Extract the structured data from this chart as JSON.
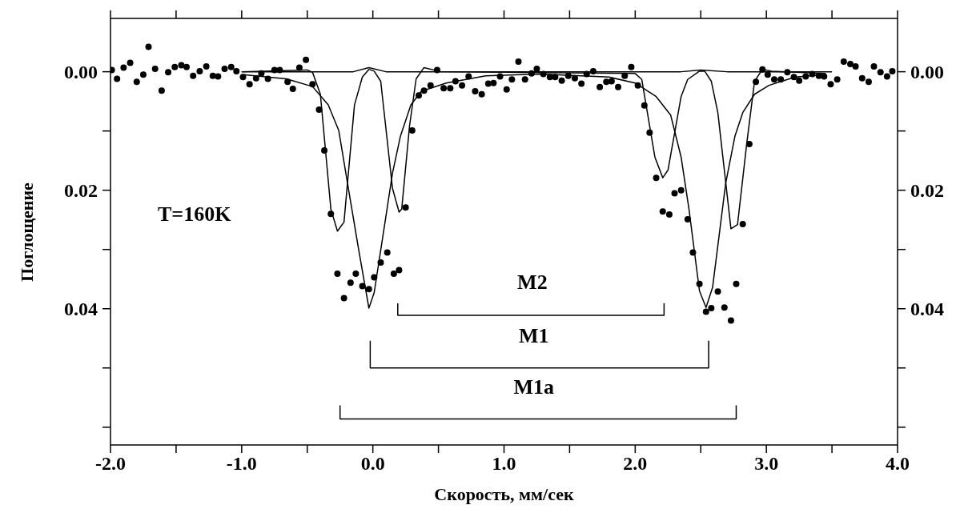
{
  "chart_data": {
    "type": "scatter",
    "xlabel": "Скорость, мм/сек",
    "ylabel": "Поглощение",
    "xlim": [
      -2.0,
      4.0
    ],
    "xticks": [
      {
        "value": -2,
        "label": "-2.0"
      },
      {
        "value": -1.5,
        "label": null
      },
      {
        "value": -1,
        "label": "-1.0"
      },
      {
        "value": -0.5,
        "label": null
      },
      {
        "value": 0,
        "label": "0.0"
      },
      {
        "value": 0.5,
        "label": null
      },
      {
        "value": 1,
        "label": "1.0"
      },
      {
        "value": 1.5,
        "label": null
      },
      {
        "value": 2,
        "label": "2.0"
      },
      {
        "value": 2.5,
        "label": null
      },
      {
        "value": 3,
        "label": "3.0"
      },
      {
        "value": 3.5,
        "label": null
      },
      {
        "value": 4,
        "label": "4.0"
      }
    ],
    "ylim": [
      0.063,
      -0.009
    ],
    "yticks": [
      {
        "value": 0,
        "label": "0.00"
      },
      {
        "value": 0.01,
        "label": null
      },
      {
        "value": 0.02,
        "label": "0.02"
      },
      {
        "value": 0.03,
        "label": null
      },
      {
        "value": 0.04,
        "label": "0.04"
      },
      {
        "value": 0.05,
        "label": null
      },
      {
        "value": 0.06,
        "label": null
      }
    ],
    "y2lim": [
      0.063,
      -0.009
    ],
    "y2ticks": [
      {
        "value": 0,
        "label": "0.00"
      },
      {
        "value": 0.01,
        "label": null
      },
      {
        "value": 0.02,
        "label": "0.02"
      },
      {
        "value": 0.03,
        "label": null
      },
      {
        "value": 0.04,
        "label": "0.04"
      },
      {
        "value": 0.05,
        "label": null
      },
      {
        "value": 0.06,
        "label": null
      }
    ],
    "series": [
      {
        "color": "#000000",
        "marker": "circle",
        "x": [
          -1.99,
          -1.95,
          -1.9,
          -1.85,
          -1.8,
          -1.75,
          -1.71,
          -1.66,
          -1.61,
          -1.56,
          -1.51,
          -1.46,
          -1.42,
          -1.37,
          -1.32,
          -1.27,
          -1.22,
          -1.18,
          -1.13,
          -1.08,
          -1.04,
          -0.99,
          -0.94,
          -0.89,
          -0.85,
          -0.8,
          -0.75,
          -0.71,
          -0.65,
          -0.61,
          -0.56,
          -0.51,
          -0.46,
          -0.41,
          -0.37,
          -0.32,
          -0.27,
          -0.22,
          -0.17,
          -0.13,
          -0.08,
          -0.03,
          0.01,
          0.06,
          0.11,
          0.16,
          0.2,
          0.25,
          0.3,
          0.35,
          0.39,
          0.44,
          0.49,
          0.54,
          0.59,
          0.63,
          0.68,
          0.73,
          0.78,
          0.83,
          0.88,
          0.92,
          0.97,
          1.02,
          1.06,
          1.11,
          1.16,
          1.21,
          1.25,
          1.3,
          1.35,
          1.39,
          1.44,
          1.49,
          1.54,
          1.59,
          1.63,
          1.68,
          1.73,
          1.78,
          1.82,
          1.87,
          1.92,
          1.97,
          2.02,
          2.07,
          2.11,
          2.16,
          2.21,
          2.26,
          2.3,
          2.35,
          2.4,
          2.44,
          2.49,
          2.54,
          2.58,
          2.63,
          2.68,
          2.73,
          2.77,
          2.82,
          2.87,
          2.92,
          2.97,
          3.01,
          3.06,
          3.11,
          3.16,
          3.21,
          3.25,
          3.3,
          3.35,
          3.4,
          3.44,
          3.49,
          3.54,
          3.59,
          3.64,
          3.68,
          3.73,
          3.78,
          3.82,
          3.87,
          3.92,
          3.96
        ],
        "values": [
          -0.0003,
          0.0012,
          -0.0007,
          -0.0015,
          0.0017,
          0.0005,
          -0.0042,
          -0.0005,
          0.0032,
          0.0001,
          -0.0008,
          -0.0011,
          -0.0008,
          0.0007,
          -0.0001,
          -0.0009,
          0.0007,
          0.0008,
          -0.0005,
          -0.0008,
          -0.0001,
          0.0009,
          0.0021,
          0.0011,
          0.0003,
          0.0012,
          -0.0003,
          -0.0003,
          0.0017,
          0.0029,
          -0.0007,
          -0.002,
          0.0021,
          0.0064,
          0.0133,
          0.024,
          0.0341,
          0.0382,
          0.0356,
          0.0341,
          0.0362,
          0.0367,
          0.0347,
          0.0322,
          0.0305,
          0.0341,
          0.0335,
          0.0229,
          0.0099,
          0.004,
          0.0032,
          0.0023,
          -0.0003,
          0.0028,
          0.0028,
          0.0016,
          0.0023,
          0.0008,
          0.0033,
          0.0038,
          0.002,
          0.0019,
          0.0008,
          0.003,
          0.0013,
          -0.0017,
          0.0013,
          0.0003,
          -0.0005,
          0.0004,
          0.0009,
          0.0009,
          0.0015,
          0.0007,
          0.0011,
          0.002,
          0.0004,
          -0.0001,
          0.0026,
          0.0017,
          0.0016,
          0.0026,
          0.0007,
          -0.0008,
          0.0023,
          0.0057,
          0.0103,
          0.0179,
          0.0236,
          0.0241,
          0.0205,
          0.02,
          0.0249,
          0.0305,
          0.0358,
          0.0405,
          0.0399,
          0.0371,
          0.0398,
          0.042,
          0.0358,
          0.0257,
          0.0122,
          0.0017,
          -0.0004,
          0.0005,
          0.0013,
          0.0013,
          0.0001,
          0.0009,
          0.0015,
          0.0008,
          0.0004,
          0.0007,
          0.0008,
          0.0021,
          0.0013,
          -0.0017,
          -0.0013,
          -0.0009,
          0.0011,
          0.0017,
          -0.0009,
          0.0001,
          0.0008,
          -0.0001
        ]
      },
      {
        "type": "line",
        "color": "#000000",
        "marker": "none",
        "x": [
          -1.0,
          -0.4,
          -0.15,
          -0.03,
          0.1,
          0.4,
          1.0,
          2.0,
          2.35,
          2.5,
          2.7,
          2.9,
          3.5
        ],
        "values": [
          0,
          0,
          0,
          -0.0007,
          0,
          0,
          0,
          0,
          0,
          -0.0003,
          0,
          0,
          0
        ]
      },
      {
        "type": "line",
        "color": "#000000",
        "marker": "none",
        "x": [
          -1.0,
          -0.5,
          -0.46,
          -0.4,
          -0.32,
          -0.27,
          -0.22,
          -0.14,
          -0.08,
          -0.03,
          0.01,
          0.06,
          0.15,
          0.2,
          0.22,
          0.28,
          0.33,
          0.39,
          0.52,
          2.0,
          2.05,
          2.15,
          2.21,
          2.25,
          2.35,
          2.4,
          2.49,
          2.53,
          2.58,
          2.63,
          2.73,
          2.78,
          2.85,
          2.91,
          2.97,
          3.04,
          3.45
        ],
        "values": [
          0,
          -0.0003,
          0.0001,
          0.0038,
          0.0232,
          0.0269,
          0.0254,
          0.0056,
          0.0009,
          -0.0004,
          -0.0001,
          0.0016,
          0.0197,
          0.0237,
          0.0232,
          0.0091,
          0.0012,
          -0.0007,
          0,
          0.0003,
          0.0013,
          0.0144,
          0.0179,
          0.0166,
          0.0042,
          0.0013,
          -0.0001,
          -0.0001,
          0.0016,
          0.0069,
          0.0265,
          0.0258,
          0.0122,
          0.0016,
          -0.0004,
          -0.0001,
          0.0003
        ]
      },
      {
        "type": "line",
        "color": "#000000",
        "marker": "none",
        "x": [
          -0.99,
          -0.66,
          -0.46,
          -0.34,
          -0.26,
          -0.2,
          -0.11,
          -0.03,
          0.01,
          0.09,
          0.15,
          0.21,
          0.29,
          0.37,
          0.56,
          0.86,
          1.27,
          1.8,
          2.0,
          2.16,
          2.27,
          2.35,
          2.41,
          2.49,
          2.54,
          2.59,
          2.69,
          2.76,
          2.82,
          2.91,
          3.02,
          3.22,
          3.45
        ],
        "values": [
          0.0005,
          0.0012,
          0.0025,
          0.0056,
          0.0099,
          0.0179,
          0.0298,
          0.0399,
          0.0373,
          0.0258,
          0.0171,
          0.0109,
          0.0056,
          0.0033,
          0.0019,
          0.0007,
          0.0004,
          0.0009,
          0.0019,
          0.0042,
          0.0073,
          0.0144,
          0.0232,
          0.037,
          0.0398,
          0.0364,
          0.0188,
          0.0109,
          0.0069,
          0.0038,
          0.0023,
          0.0009,
          0.0005
        ]
      },
      {
        "type": "line",
        "color": "#000000",
        "marker": "none",
        "x": [
          0.19,
          0.19,
          2.22,
          2.22
        ],
        "values": [
          0.0391,
          0.0411,
          0.0411,
          0.0391
        ]
      },
      {
        "type": "line",
        "color": "#000000",
        "marker": "none",
        "x": [
          -0.02,
          -0.02,
          2.56,
          2.56
        ],
        "values": [
          0.0454,
          0.05,
          0.05,
          0.0454
        ]
      },
      {
        "type": "line",
        "color": "#000000",
        "marker": "none",
        "x": [
          -0.25,
          -0.25,
          2.77,
          2.77
        ],
        "values": [
          0.0563,
          0.0586,
          0.0586,
          0.0563
        ]
      }
    ],
    "annotations": [
      "T=160K",
      "M2",
      "M1",
      "M1a"
    ]
  }
}
